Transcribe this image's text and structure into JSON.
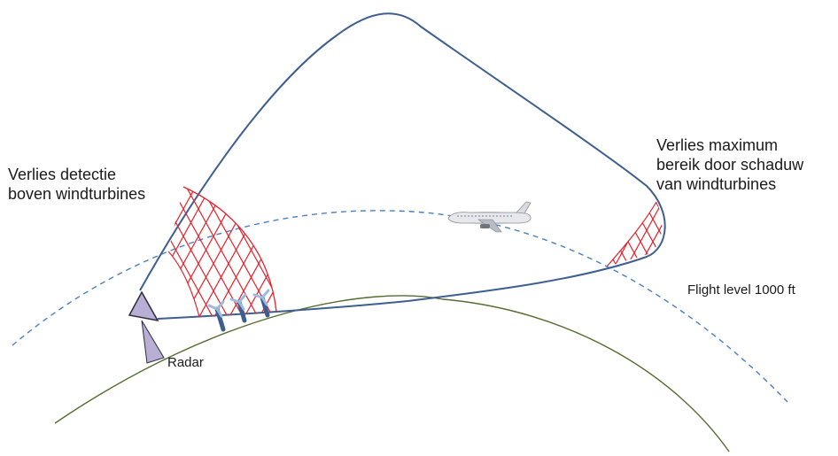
{
  "labels": {
    "loss_detection": "Verlies detectie\nboven windturbines",
    "loss_range": "Verlies maximum\nbereik door schaduw\nvan windturbines",
    "flight_level": "Flight level 1000 ft",
    "radar": "Radar"
  },
  "colors": {
    "coverage_line": "#3e5f8f",
    "earth_line": "#556b2f",
    "flight_level_line": "#4a7fc1",
    "hatch": "#e8202a",
    "radar_fill": "#b9aed4",
    "radar_stroke": "#2b2b3b",
    "turbine_tower": "#3d5f8e",
    "turbine_blade": "#9dbbe0"
  },
  "icons": {
    "radar": "radar-icon",
    "aircraft": "airplane-icon",
    "wind_turbine": "wind-turbine-icon"
  }
}
